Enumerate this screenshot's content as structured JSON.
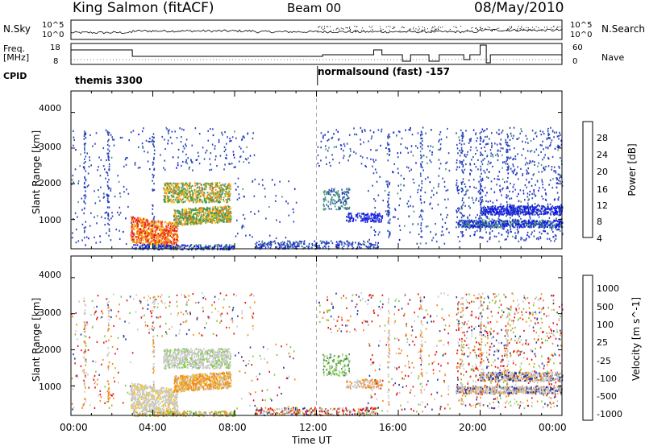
{
  "header": {
    "station": "King Salmon (fitACF)",
    "beam": "Beam 00",
    "date": "08/May/2010"
  },
  "noise_panel": {
    "left_label": "N.Sky",
    "right_label": "N.Search",
    "ticks": [
      "10^5",
      "10^0"
    ]
  },
  "freq_panel": {
    "left_label_1": "Freq.",
    "left_label_2": "[MHz]",
    "left_ticks": [
      "18",
      "8"
    ],
    "right_label": "Nave",
    "right_ticks": [
      "60",
      "0"
    ]
  },
  "cpid_panel": {
    "label": "CPID",
    "segments": [
      {
        "text": "themis 3300"
      },
      {
        "text": "normalsound (fast) -157"
      }
    ]
  },
  "time_axis": {
    "label": "Time UT",
    "ticks": [
      "00:00",
      "04:00",
      "08:00",
      "12:00",
      "16:00",
      "20:00",
      "00:00"
    ]
  },
  "range_axis": {
    "label": "Slant Range [km]",
    "ticks": [
      "4000",
      "3000",
      "2000",
      "1000"
    ]
  },
  "power_colorbar": {
    "label": "Power [dB]",
    "ticks": [
      "28",
      "24",
      "20",
      "16",
      "12",
      "8",
      "4"
    ],
    "colors": [
      "#e8101a",
      "#f04a14",
      "#f4801a",
      "#f6c420",
      "#2e9e3a",
      "#4a9a7a",
      "#2a46b8",
      "#1010f0"
    ]
  },
  "velocity_colorbar": {
    "label": "Velocity [m s^-1]",
    "ticks": [
      "1000",
      "500",
      "100",
      "25",
      "-25",
      "-100",
      "-500",
      "-1000"
    ],
    "colors": [
      "#1f3aa8",
      "#2a7a8a",
      "#3a9a3a",
      "#7acc3a",
      "#c8c8c8",
      "#f4c820",
      "#f48a1a",
      "#f04a14",
      "#e8101a"
    ]
  },
  "chart_data": [
    {
      "type": "heatmap",
      "title": "Power",
      "xlabel": "Time UT",
      "ylabel": "Slant Range [km]",
      "xlim": [
        "00:00",
        "24:00"
      ],
      "ylim": [
        180,
        4600
      ],
      "zlabel": "Power [dB]",
      "zticks": [
        4,
        8,
        12,
        16,
        20,
        24,
        28
      ],
      "regions": [
        {
          "t": [
            2.9,
            5.2
          ],
          "r": [
            400,
            1100
          ],
          "level": "high (16-28 dB)"
        },
        {
          "t": [
            5.0,
            8.0
          ],
          "r": [
            900,
            1300
          ],
          "level": "medium (8-20 dB)"
        },
        {
          "t": [
            4.5,
            7.5
          ],
          "r": [
            1500,
            2000
          ],
          "level": "medium (8-20 dB)"
        },
        {
          "t": [
            19.0,
            24.0
          ],
          "r": [
            700,
            1400
          ],
          "level": "low (4-8 dB)"
        }
      ]
    },
    {
      "type": "heatmap",
      "title": "Velocity",
      "xlabel": "Time UT",
      "ylabel": "Slant Range [km]",
      "xlim": [
        "00:00",
        "24:00"
      ],
      "ylim": [
        180,
        4600
      ],
      "zlabel": "Velocity [m s^-1]",
      "zticks": [
        1000,
        500,
        100,
        25,
        -25,
        -100,
        -500,
        -1000
      ],
      "regions": [
        {
          "t": [
            2.9,
            5.0
          ],
          "r": [
            300,
            1100
          ],
          "level": "~0 (grey)"
        },
        {
          "t": [
            5.0,
            7.5
          ],
          "r": [
            700,
            1200
          ],
          "level": "-100 to -500 (orange)"
        },
        {
          "t": [
            4.5,
            8.0
          ],
          "r": [
            1500,
            2100
          ],
          "level": "~0 (grey)"
        },
        {
          "t": [
            13.0,
            14.0
          ],
          "r": [
            1400,
            1800
          ],
          "level": "100 (green)"
        }
      ]
    }
  ]
}
